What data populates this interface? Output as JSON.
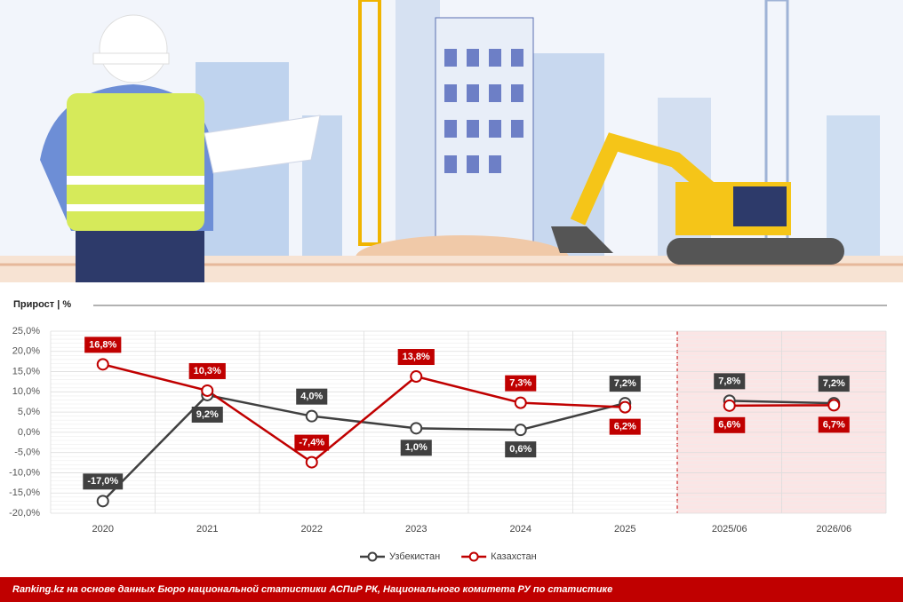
{
  "chart_data": {
    "type": "line",
    "title": "Прирост | %",
    "categories": [
      "2020",
      "2021",
      "2022",
      "2023",
      "2024",
      "2025",
      "2025/06",
      "2026/06"
    ],
    "series": [
      {
        "name": "Узбекистан",
        "color": "#404040",
        "values": [
          -17.0,
          9.2,
          4.0,
          1.0,
          0.6,
          7.2,
          7.8,
          7.2
        ],
        "value_labels": [
          "-17,0%",
          "9,2%",
          "4,0%",
          "1,0%",
          "0,6%",
          "7,2%",
          "7,8%",
          "7,2%"
        ]
      },
      {
        "name": "Казахстан",
        "color": "#c00000",
        "values": [
          16.8,
          10.3,
          -7.4,
          13.8,
          7.3,
          6.2,
          6.6,
          6.7
        ],
        "value_labels": [
          "16,8%",
          "10,3%",
          "-7,4%",
          "13,8%",
          "7,3%",
          "6,2%",
          "6,6%",
          "6,7%"
        ]
      }
    ],
    "ylim": [
      -20,
      25
    ],
    "yticks": [
      {
        "value": -20,
        "label": "-20,0%"
      },
      {
        "value": -15,
        "label": "-15,0%"
      },
      {
        "value": -10,
        "label": "-10,0%"
      },
      {
        "value": -5,
        "label": "-5,0%"
      },
      {
        "value": 0,
        "label": "0,0%"
      },
      {
        "value": 5,
        "label": "5,0%"
      },
      {
        "value": 10,
        "label": "10,0%"
      },
      {
        "value": 15,
        "label": "15,0%"
      },
      {
        "value": 20,
        "label": "20,0%"
      },
      {
        "value": 25,
        "label": "25,0%"
      }
    ],
    "grid": true,
    "shaded_from": "2025/06",
    "source": "Ranking.kz на основе данных Бюро национальной статистики АСПиР РК, Национального комитета РУ по статистике"
  }
}
